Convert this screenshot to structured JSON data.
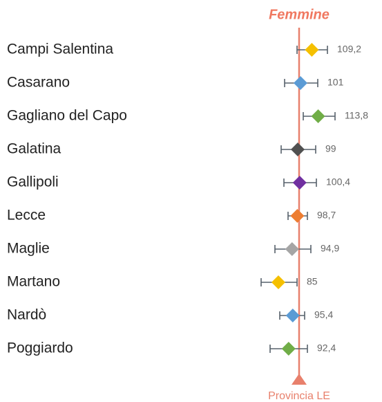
{
  "chart_data": {
    "type": "dot",
    "title": "Femmine",
    "categories": [
      "Campi Salentina",
      "Casarano",
      "Gagliano del Capo",
      "Galatina",
      "Gallipoli",
      "Lecce",
      "Maglie",
      "Martano",
      "Nardò",
      "Poggiardo"
    ],
    "values": [
      109.2,
      101,
      113.8,
      99,
      100.4,
      98.7,
      94.9,
      85,
      95.4,
      92.4
    ],
    "value_labels": [
      "109,2",
      "101",
      "113,8",
      "99",
      "100,4",
      "98,7",
      "94,9",
      "85",
      "95,4",
      "92,4"
    ],
    "lower": [
      98.5,
      89.5,
      103,
      87,
      89,
      92,
      82.5,
      72.5,
      86,
      79
    ],
    "upper": [
      120.5,
      113.5,
      126,
      112,
      112.5,
      106,
      108.5,
      98.5,
      104,
      106
    ],
    "colors": [
      "#f5c000",
      "#5b9bd5",
      "#70ad47",
      "#505050",
      "#7030a0",
      "#ed7d31",
      "#a5a5a5",
      "#f5c000",
      "#5b9bd5",
      "#70ad47"
    ],
    "xlim": [
      60,
      160
    ],
    "reference": {
      "value": 100,
      "label": "Provincia LE",
      "color": "#e8806c"
    }
  }
}
